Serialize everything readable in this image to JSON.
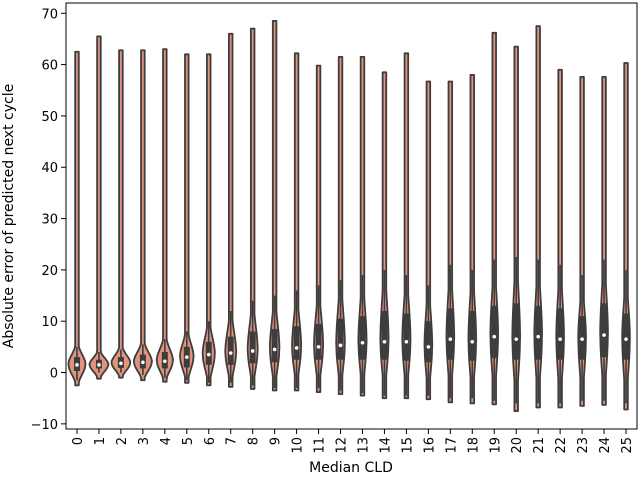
{
  "chart_data": {
    "type": "violin",
    "xlabel": "Median CLD",
    "ylabel": "Absolute error of predicted next cycle",
    "ylim": [
      -11,
      72
    ],
    "yticks": [
      -10,
      0,
      10,
      20,
      30,
      40,
      50,
      60,
      70
    ],
    "categories": [
      "0",
      "1",
      "2",
      "3",
      "4",
      "5",
      "6",
      "7",
      "8",
      "9",
      "10",
      "11",
      "12",
      "13",
      "14",
      "15",
      "16",
      "17",
      "18",
      "19",
      "20",
      "21",
      "22",
      "23",
      "24",
      "25"
    ],
    "colors": {
      "violin_fill": "#e2937b",
      "violin_edge": "#3d3d3d",
      "box": "#3d3d3d",
      "median": "#ffffff"
    },
    "violins": [
      {
        "cat": "0",
        "min": -2.5,
        "max": 62.5,
        "q1": 0.3,
        "median": 1.5,
        "q3": 3.0,
        "wl": -1.5,
        "wh": 5.0,
        "maxw": 0.38
      },
      {
        "cat": "1",
        "min": -1.2,
        "max": 65.5,
        "q1": 0.8,
        "median": 1.5,
        "q3": 2.5,
        "wl": 0.0,
        "wh": 4.0,
        "maxw": 0.42
      },
      {
        "cat": "2",
        "min": -1.0,
        "max": 62.8,
        "q1": 0.9,
        "median": 1.8,
        "q3": 3.0,
        "wl": 0.0,
        "wh": 4.5,
        "maxw": 0.42
      },
      {
        "cat": "3",
        "min": -1.5,
        "max": 62.8,
        "q1": 0.8,
        "median": 2.0,
        "q3": 3.5,
        "wl": -0.5,
        "wh": 5.5,
        "maxw": 0.4
      },
      {
        "cat": "4",
        "min": -1.8,
        "max": 63.0,
        "q1": 0.8,
        "median": 2.2,
        "q3": 4.0,
        "wl": -1.0,
        "wh": 6.5,
        "maxw": 0.36
      },
      {
        "cat": "5",
        "min": -2.0,
        "max": 62.0,
        "q1": 1.0,
        "median": 3.0,
        "q3": 5.0,
        "wl": -1.5,
        "wh": 8.0,
        "maxw": 0.3
      },
      {
        "cat": "6",
        "min": -2.5,
        "max": 62.0,
        "q1": 1.5,
        "median": 3.5,
        "q3": 6.0,
        "wl": -2.0,
        "wh": 10.0,
        "maxw": 0.27
      },
      {
        "cat": "7",
        "min": -2.8,
        "max": 66.0,
        "q1": 1.5,
        "median": 3.8,
        "q3": 7.0,
        "wl": -2.0,
        "wh": 12.0,
        "maxw": 0.24
      },
      {
        "cat": "8",
        "min": -3.2,
        "max": 67.0,
        "q1": 1.8,
        "median": 4.2,
        "q3": 8.0,
        "wl": -2.5,
        "wh": 14.0,
        "maxw": 0.22
      },
      {
        "cat": "9",
        "min": -3.5,
        "max": 68.5,
        "q1": 2.0,
        "median": 4.5,
        "q3": 8.5,
        "wl": -3.0,
        "wh": 15.0,
        "maxw": 0.21
      },
      {
        "cat": "10",
        "min": -3.5,
        "max": 62.2,
        "q1": 2.5,
        "median": 4.8,
        "q3": 9.0,
        "wl": -3.0,
        "wh": 16.0,
        "maxw": 0.2
      },
      {
        "cat": "11",
        "min": -3.8,
        "max": 59.8,
        "q1": 2.5,
        "median": 5.0,
        "q3": 9.5,
        "wl": -3.0,
        "wh": 17.0,
        "maxw": 0.2
      },
      {
        "cat": "12",
        "min": -4.2,
        "max": 61.5,
        "q1": 2.5,
        "median": 5.3,
        "q3": 10.5,
        "wl": -3.5,
        "wh": 18.0,
        "maxw": 0.19
      },
      {
        "cat": "13",
        "min": -4.5,
        "max": 61.5,
        "q1": 2.5,
        "median": 5.8,
        "q3": 11.0,
        "wl": -4.0,
        "wh": 19.0,
        "maxw": 0.18
      },
      {
        "cat": "14",
        "min": -5.0,
        "max": 58.5,
        "q1": 2.5,
        "median": 6.0,
        "q3": 12.0,
        "wl": -4.5,
        "wh": 20.0,
        "maxw": 0.18
      },
      {
        "cat": "15",
        "min": -5.0,
        "max": 62.2,
        "q1": 2.3,
        "median": 6.0,
        "q3": 11.5,
        "wl": -4.5,
        "wh": 19.0,
        "maxw": 0.18
      },
      {
        "cat": "16",
        "min": -5.2,
        "max": 56.7,
        "q1": 2.0,
        "median": 5.0,
        "q3": 10.0,
        "wl": -4.5,
        "wh": 17.0,
        "maxw": 0.17
      },
      {
        "cat": "17",
        "min": -5.8,
        "max": 56.7,
        "q1": 2.5,
        "median": 6.5,
        "q3": 12.5,
        "wl": -5.0,
        "wh": 21.0,
        "maxw": 0.17
      },
      {
        "cat": "18",
        "min": -6.0,
        "max": 58.0,
        "q1": 2.3,
        "median": 6.0,
        "q3": 12.0,
        "wl": -5.0,
        "wh": 20.0,
        "maxw": 0.17
      },
      {
        "cat": "19",
        "min": -6.2,
        "max": 66.2,
        "q1": 2.8,
        "median": 7.0,
        "q3": 13.0,
        "wl": -5.5,
        "wh": 22.0,
        "maxw": 0.17
      },
      {
        "cat": "20",
        "min": -7.5,
        "max": 63.5,
        "q1": 2.5,
        "median": 6.5,
        "q3": 13.5,
        "wl": -6.0,
        "wh": 22.5,
        "maxw": 0.17
      },
      {
        "cat": "21",
        "min": -6.8,
        "max": 67.5,
        "q1": 2.5,
        "median": 7.0,
        "q3": 13.0,
        "wl": -6.0,
        "wh": 22.0,
        "maxw": 0.17
      },
      {
        "cat": "22",
        "min": -6.8,
        "max": 59.0,
        "q1": 2.5,
        "median": 6.5,
        "q3": 12.5,
        "wl": -6.0,
        "wh": 21.0,
        "maxw": 0.17
      },
      {
        "cat": "23",
        "min": -6.5,
        "max": 57.6,
        "q1": 2.5,
        "median": 6.5,
        "q3": 11.0,
        "wl": -5.5,
        "wh": 19.0,
        "maxw": 0.17
      },
      {
        "cat": "24",
        "min": -6.3,
        "max": 57.6,
        "q1": 3.0,
        "median": 7.3,
        "q3": 13.5,
        "wl": -5.5,
        "wh": 22.0,
        "maxw": 0.17
      },
      {
        "cat": "25",
        "min": -7.2,
        "max": 60.3,
        "q1": 2.5,
        "median": 6.5,
        "q3": 11.5,
        "wl": -6.0,
        "wh": 20.0,
        "maxw": 0.17
      }
    ]
  }
}
